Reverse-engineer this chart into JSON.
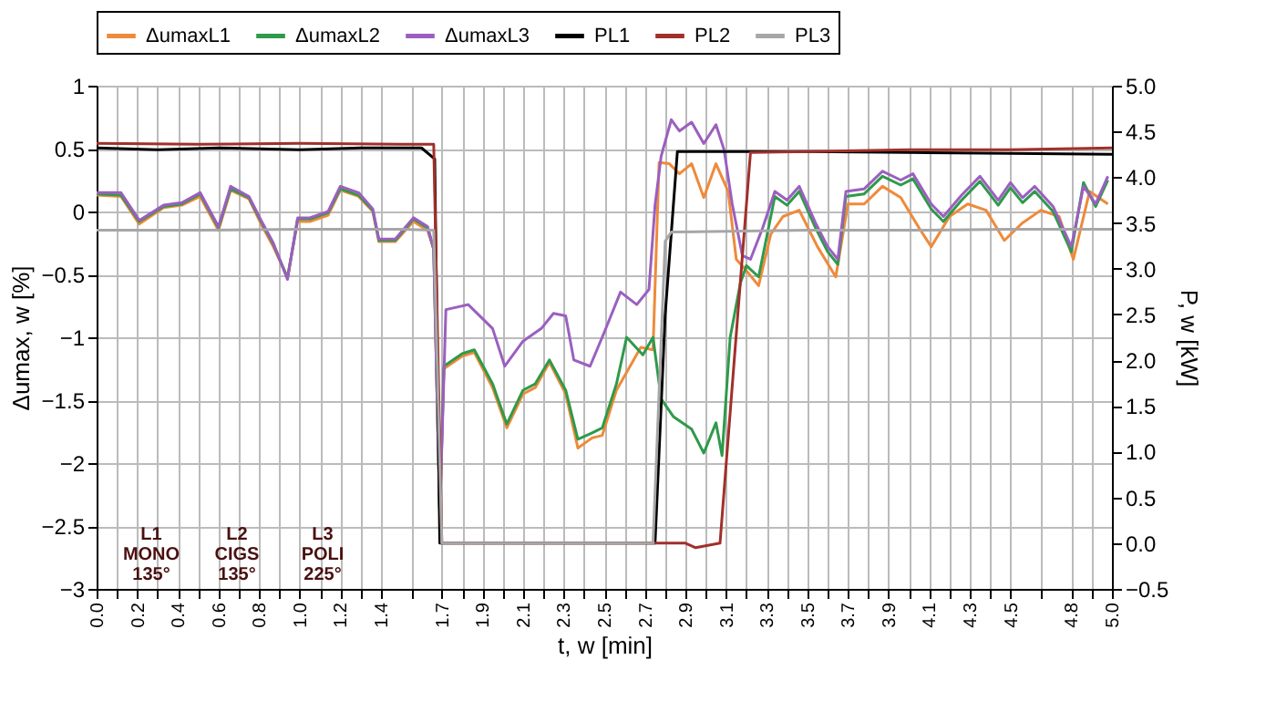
{
  "chart_data": {
    "type": "line",
    "xlabel": "t, w [min]",
    "ylabel": "Δumax, w [%]",
    "y2label": "P, w [kW]",
    "xlim": [
      0,
      5
    ],
    "xticks": [
      {
        "value": 0,
        "label": "0.0"
      },
      {
        "value": 0.1,
        "label": null
      },
      {
        "value": 0.2,
        "label": "0.2"
      },
      {
        "value": 0.3,
        "label": null
      },
      {
        "value": 0.4,
        "label": "0.4"
      },
      {
        "value": 0.5,
        "label": null
      },
      {
        "value": 0.6,
        "label": "0.6"
      },
      {
        "value": 0.7,
        "label": null
      },
      {
        "value": 0.8,
        "label": "0.8"
      },
      {
        "value": 0.9,
        "label": null
      },
      {
        "value": 1.0,
        "label": "1.0"
      },
      {
        "value": 1.1,
        "label": null
      },
      {
        "value": 1.2,
        "label": "1.2"
      },
      {
        "value": 1.3,
        "label": null
      },
      {
        "value": 1.4,
        "label": "1.4"
      },
      {
        "value": 1.55,
        "label": null
      },
      {
        "value": 1.7,
        "label": "1.7"
      },
      {
        "value": 1.8,
        "label": null
      },
      {
        "value": 1.9,
        "label": "1.9"
      },
      {
        "value": 2.0,
        "label": null
      },
      {
        "value": 2.1,
        "label": "2.1"
      },
      {
        "value": 2.2,
        "label": null
      },
      {
        "value": 2.3,
        "label": "2.3"
      },
      {
        "value": 2.4,
        "label": null
      },
      {
        "value": 2.5,
        "label": "2.5"
      },
      {
        "value": 2.6,
        "label": null
      },
      {
        "value": 2.7,
        "label": "2.7"
      },
      {
        "value": 2.8,
        "label": null
      },
      {
        "value": 2.9,
        "label": "2.9"
      },
      {
        "value": 3.0,
        "label": null
      },
      {
        "value": 3.1,
        "label": "3.1"
      },
      {
        "value": 3.2,
        "label": null
      },
      {
        "value": 3.3,
        "label": "3.3"
      },
      {
        "value": 3.4,
        "label": null
      },
      {
        "value": 3.5,
        "label": "3.5"
      },
      {
        "value": 3.6,
        "label": null
      },
      {
        "value": 3.7,
        "label": "3.7"
      },
      {
        "value": 3.8,
        "label": null
      },
      {
        "value": 3.9,
        "label": "3.9"
      },
      {
        "value": 4.0,
        "label": null
      },
      {
        "value": 4.1,
        "label": "4.1"
      },
      {
        "value": 4.2,
        "label": null
      },
      {
        "value": 4.3,
        "label": "4.3"
      },
      {
        "value": 4.4,
        "label": null
      },
      {
        "value": 4.5,
        "label": "4.5"
      },
      {
        "value": 4.65,
        "label": null
      },
      {
        "value": 4.8,
        "label": "4.8"
      },
      {
        "value": 4.9,
        "label": null
      },
      {
        "value": 5,
        "label": "5.0"
      }
    ],
    "ylim": [
      -3,
      1
    ],
    "yticks": [
      -3,
      -2.5,
      -2,
      -1.5,
      -1,
      -0.5,
      0,
      0.5,
      1
    ],
    "y2lim": [
      -0.5,
      5.0
    ],
    "y2ticks": [
      -0.5,
      {
        "value": 0,
        "label": "0.0"
      },
      0.5,
      {
        "value": 1,
        "label": "1.0"
      },
      1.5,
      {
        "value": 2,
        "label": "2.0"
      },
      2.5,
      {
        "value": 3,
        "label": "3.0"
      },
      3.5,
      {
        "value": 4,
        "label": "4.0"
      },
      4.5,
      {
        "value": 5,
        "label": "5.0"
      }
    ],
    "grid": true,
    "legend": "top",
    "marker": "none",
    "line_style": "solid",
    "annotations": [
      "L1 MONO 135°",
      "L2 CIGS 135°",
      "L3 POLI 225°"
    ],
    "series": [
      {
        "name": "ΔumaxL1",
        "color": "#ef8a3a",
        "x": [
          0,
          0.12,
          0.21,
          0.33,
          0.42,
          0.51,
          0.6,
          0.66,
          0.75,
          0.81,
          0.87,
          0.94,
          0.99,
          1.05,
          1.14,
          1.2,
          1.29,
          1.36,
          1.39,
          1.47,
          1.56,
          1.63,
          1.66,
          1.69,
          1.71,
          1.8,
          1.86,
          1.95,
          2.02,
          2.1,
          2.16,
          2.23,
          2.31,
          2.37,
          2.44,
          2.49,
          2.56,
          2.68,
          2.74,
          2.77,
          2.82,
          2.87,
          2.93,
          2.99,
          3.05,
          3.11,
          3.15,
          3.2,
          3.26,
          3.32,
          3.38,
          3.46,
          3.55,
          3.64,
          3.7,
          3.78,
          3.87,
          3.96,
          4.05,
          4.11,
          4.2,
          4.29,
          4.38,
          4.47,
          4.56,
          4.65,
          4.74,
          4.81,
          4.89,
          4.98
        ],
        "values": [
          0.13,
          0.12,
          -0.1,
          0.03,
          0.05,
          0.12,
          -0.15,
          0.17,
          0.1,
          -0.1,
          -0.28,
          -0.52,
          -0.08,
          -0.08,
          -0.03,
          0.17,
          0.12,
          0,
          -0.24,
          -0.24,
          -0.08,
          -0.15,
          -0.3,
          -2.4,
          -1.25,
          -1.15,
          -1.12,
          -1.4,
          -1.72,
          -1.45,
          -1.4,
          -1.2,
          -1.45,
          -1.88,
          -1.8,
          -1.78,
          -1.42,
          -1.08,
          -1.1,
          0.39,
          0.38,
          0.3,
          0.38,
          0.11,
          0.38,
          0.16,
          -0.38,
          -0.47,
          -0.59,
          -0.18,
          -0.04,
          0.01,
          -0.28,
          -0.52,
          0.06,
          0.06,
          0.2,
          0.11,
          -0.13,
          -0.28,
          -0.04,
          0.06,
          0.01,
          -0.23,
          -0.09,
          0.01,
          -0.04,
          -0.38,
          0.16,
          0.06
        ]
      },
      {
        "name": "ΔumaxL2",
        "color": "#2e9a4a",
        "x": [
          0,
          0.12,
          0.21,
          0.33,
          0.42,
          0.51,
          0.6,
          0.66,
          0.75,
          0.81,
          0.87,
          0.94,
          0.99,
          1.05,
          1.14,
          1.2,
          1.29,
          1.36,
          1.39,
          1.47,
          1.56,
          1.63,
          1.66,
          1.69,
          1.71,
          1.8,
          1.86,
          1.95,
          2.02,
          2.1,
          2.16,
          2.23,
          2.31,
          2.37,
          2.44,
          2.49,
          2.56,
          2.61,
          2.69,
          2.74,
          2.78,
          2.84,
          2.93,
          2.99,
          3.05,
          3.08,
          3.12,
          3.17,
          3.2,
          3.26,
          3.34,
          3.4,
          3.46,
          3.54,
          3.6,
          3.65,
          3.69,
          3.78,
          3.87,
          3.96,
          4.02,
          4.11,
          4.17,
          4.26,
          4.35,
          4.44,
          4.5,
          4.56,
          4.62,
          4.71,
          4.8,
          4.86,
          4.92,
          4.98
        ],
        "values": [
          0.14,
          0.13,
          -0.08,
          0.04,
          0.06,
          0.14,
          -0.13,
          0.18,
          0.11,
          -0.08,
          -0.26,
          -0.53,
          -0.06,
          -0.06,
          -0.01,
          0.18,
          0.13,
          0.01,
          -0.23,
          -0.23,
          -0.06,
          -0.13,
          -0.3,
          -2.4,
          -1.23,
          -1.13,
          -1.1,
          -1.37,
          -1.69,
          -1.42,
          -1.37,
          -1.18,
          -1.42,
          -1.81,
          -1.76,
          -1.72,
          -1.37,
          -1.0,
          -1.14,
          -1.0,
          -1.49,
          -1.63,
          -1.73,
          -1.92,
          -1.68,
          -1.94,
          -1.0,
          -0.57,
          -0.43,
          -0.52,
          0.12,
          0.05,
          0.16,
          -0.13,
          -0.32,
          -0.42,
          0.12,
          0.14,
          0.28,
          0.21,
          0.26,
          0.02,
          -0.08,
          0.09,
          0.24,
          0.05,
          0.19,
          0.07,
          0.16,
          0.0,
          -0.32,
          0.23,
          0.04,
          0.25
        ]
      },
      {
        "name": "ΔumaxL3",
        "color": "#9b5fc0",
        "x": [
          0,
          0.12,
          0.21,
          0.33,
          0.42,
          0.51,
          0.6,
          0.66,
          0.75,
          0.81,
          0.87,
          0.94,
          0.99,
          1.05,
          1.14,
          1.2,
          1.29,
          1.36,
          1.39,
          1.47,
          1.56,
          1.63,
          1.66,
          1.69,
          1.72,
          1.83,
          1.95,
          2.01,
          2.1,
          2.19,
          2.25,
          2.31,
          2.35,
          2.43,
          2.5,
          2.58,
          2.66,
          2.72,
          2.75,
          2.78,
          2.83,
          2.87,
          2.93,
          2.99,
          3.05,
          3.09,
          3.13,
          3.18,
          3.22,
          3.28,
          3.34,
          3.4,
          3.46,
          3.54,
          3.6,
          3.65,
          3.69,
          3.78,
          3.87,
          3.96,
          4.02,
          4.11,
          4.17,
          4.26,
          4.35,
          4.44,
          4.5,
          4.56,
          4.62,
          4.71,
          4.8,
          4.86,
          4.92,
          4.98
        ],
        "values": [
          0.15,
          0.15,
          -0.07,
          0.05,
          0.07,
          0.15,
          -0.12,
          0.2,
          0.12,
          -0.07,
          -0.25,
          -0.54,
          -0.05,
          -0.05,
          0,
          0.2,
          0.15,
          0.02,
          -0.22,
          -0.22,
          -0.05,
          -0.12,
          -0.3,
          -2.4,
          -0.78,
          -0.74,
          -0.93,
          -1.23,
          -1.03,
          -0.93,
          -0.81,
          -0.83,
          -1.18,
          -1.23,
          -0.96,
          -0.64,
          -0.74,
          -0.62,
          0.05,
          0.44,
          0.73,
          0.64,
          0.71,
          0.54,
          0.69,
          0.49,
          0.06,
          -0.35,
          -0.38,
          -0.13,
          0.16,
          0.09,
          0.2,
          -0.09,
          -0.28,
          -0.38,
          0.16,
          0.18,
          0.32,
          0.25,
          0.3,
          0.06,
          -0.04,
          0.13,
          0.28,
          0.09,
          0.23,
          0.11,
          0.2,
          0.04,
          -0.28,
          0.2,
          0.06,
          0.28
        ]
      },
      {
        "name": "PL1",
        "color": "#000000",
        "axis": "y2",
        "x": [
          0,
          0.3,
          0.6,
          1.0,
          1.3,
          1.6,
          1.665,
          1.69,
          2.75,
          2.8,
          2.86,
          3.5,
          4.0,
          4.5,
          5.0
        ],
        "values": [
          4.32,
          4.3,
          4.32,
          4.3,
          4.32,
          4.32,
          4.2,
          0,
          0,
          2.5,
          4.28,
          4.28,
          4.27,
          4.26,
          4.25
        ]
      },
      {
        "name": "PL2",
        "color": "#a0302a",
        "axis": "y2",
        "x": [
          0,
          0.5,
          1.0,
          1.5,
          1.66,
          1.7,
          2.9,
          2.95,
          3.07,
          3.14,
          3.22,
          3.5,
          4.0,
          4.5,
          5.0
        ],
        "values": [
          4.37,
          4.36,
          4.37,
          4.36,
          4.36,
          0,
          0,
          -0.05,
          0,
          2.0,
          4.27,
          4.28,
          4.3,
          4.3,
          4.32
        ]
      },
      {
        "name": "PL3",
        "color": "#a6a6a6",
        "axis": "y2",
        "x": [
          0,
          0.5,
          1.0,
          1.5,
          1.66,
          1.7,
          2.74,
          2.8,
          2.83,
          3.5,
          4.0,
          4.5,
          5.0
        ],
        "values": [
          3.42,
          3.42,
          3.43,
          3.43,
          3.42,
          0,
          0,
          3.3,
          3.4,
          3.42,
          3.42,
          3.43,
          3.43
        ]
      }
    ]
  }
}
